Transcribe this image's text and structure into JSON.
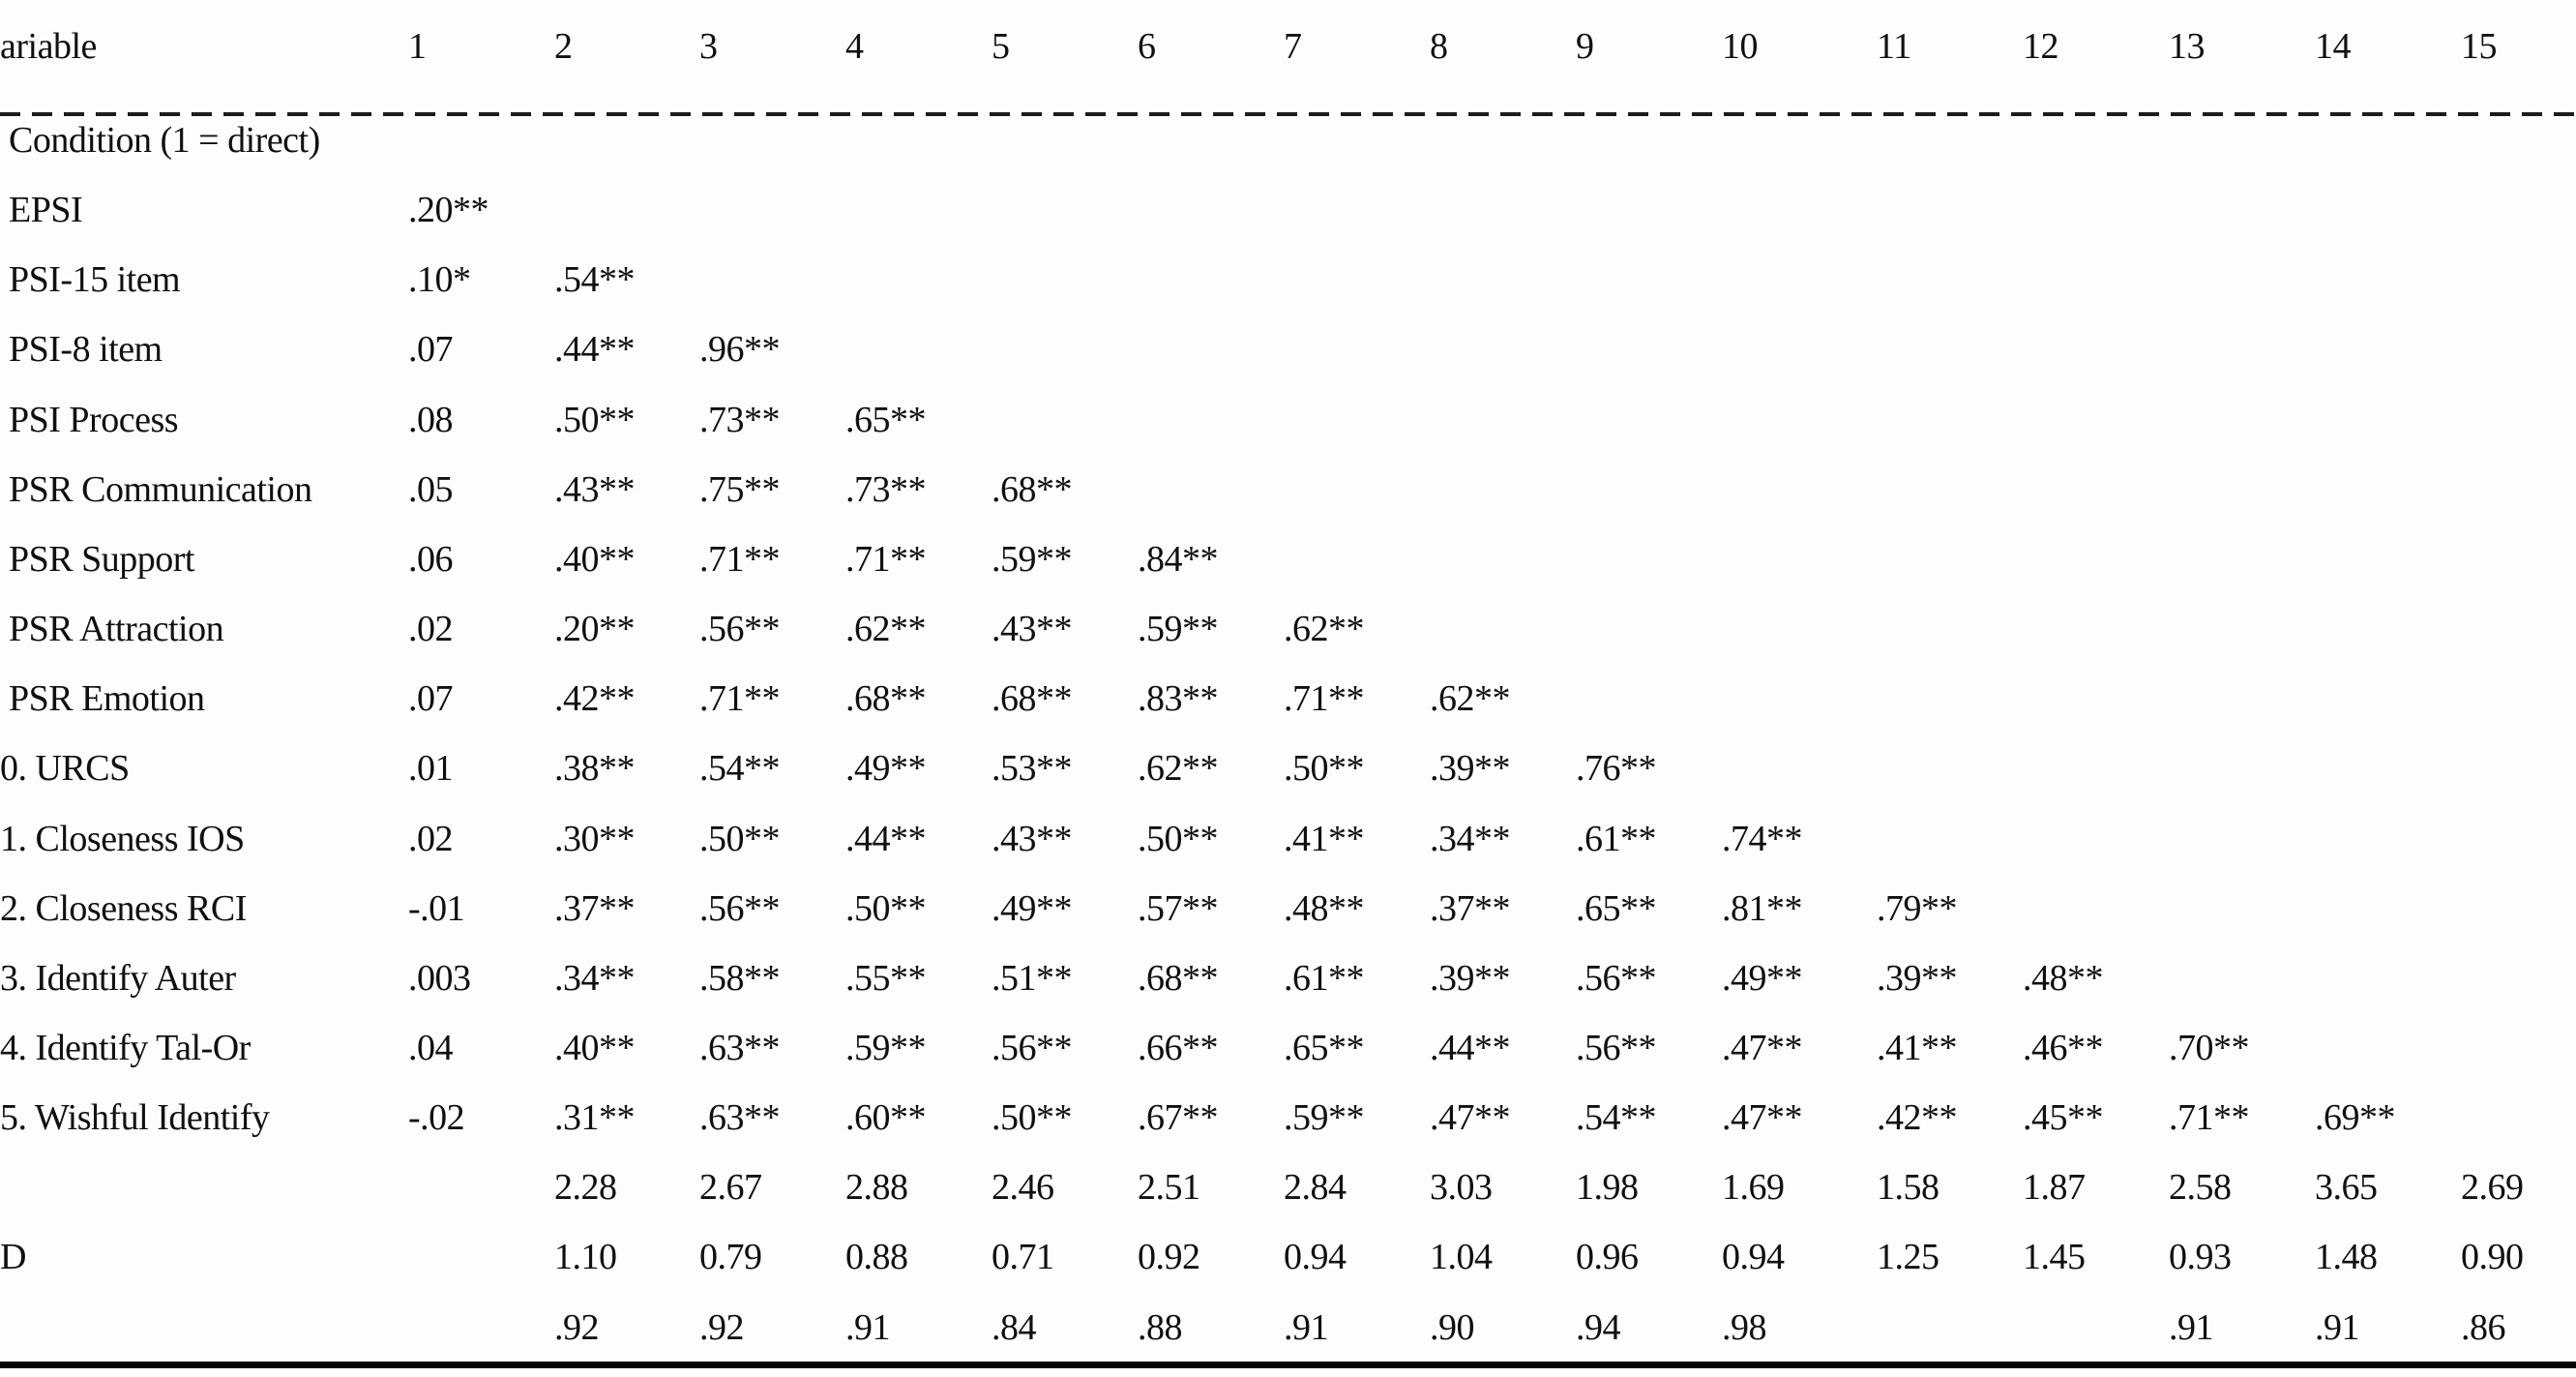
{
  "table": {
    "header": {
      "variable_label": "ariable",
      "columns": [
        "1",
        "2",
        "3",
        "4",
        "5",
        "6",
        "7",
        "8",
        "9",
        "10",
        "11",
        "12",
        "13",
        "14",
        "15"
      ]
    },
    "rows": [
      {
        "label": "Condition (1 = direct)",
        "values": [
          "",
          "",
          "",
          "",
          "",
          "",
          "",
          "",
          "",
          "",
          "",
          "",
          "",
          "",
          ""
        ]
      },
      {
        "label": "EPSI",
        "values": [
          ".20**",
          "",
          "",
          "",
          "",
          "",
          "",
          "",
          "",
          "",
          "",
          "",
          "",
          "",
          ""
        ]
      },
      {
        "label": "PSI-15 item",
        "values": [
          ".10*",
          ".54**",
          "",
          "",
          "",
          "",
          "",
          "",
          "",
          "",
          "",
          "",
          "",
          "",
          ""
        ]
      },
      {
        "label": "PSI-8 item",
        "values": [
          ".07",
          ".44**",
          ".96**",
          "",
          "",
          "",
          "",
          "",
          "",
          "",
          "",
          "",
          "",
          "",
          ""
        ]
      },
      {
        "label": "PSI Process",
        "values": [
          ".08",
          ".50**",
          ".73**",
          ".65**",
          "",
          "",
          "",
          "",
          "",
          "",
          "",
          "",
          "",
          "",
          ""
        ]
      },
      {
        "label": "PSR Communication",
        "values": [
          ".05",
          ".43**",
          ".75**",
          ".73**",
          ".68**",
          "",
          "",
          "",
          "",
          "",
          "",
          "",
          "",
          "",
          ""
        ]
      },
      {
        "label": "PSR Support",
        "values": [
          ".06",
          ".40**",
          ".71**",
          ".71**",
          ".59**",
          ".84**",
          "",
          "",
          "",
          "",
          "",
          "",
          "",
          "",
          ""
        ]
      },
      {
        "label": "PSR Attraction",
        "values": [
          ".02",
          ".20**",
          ".56**",
          ".62**",
          ".43**",
          ".59**",
          ".62**",
          "",
          "",
          "",
          "",
          "",
          "",
          "",
          ""
        ]
      },
      {
        "label": "PSR Emotion",
        "values": [
          ".07",
          ".42**",
          ".71**",
          ".68**",
          ".68**",
          ".83**",
          ".71**",
          ".62**",
          "",
          "",
          "",
          "",
          "",
          "",
          ""
        ]
      },
      {
        "label": "0. URCS",
        "values": [
          ".01",
          ".38**",
          ".54**",
          ".49**",
          ".53**",
          ".62**",
          ".50**",
          ".39**",
          ".76**",
          "",
          "",
          "",
          "",
          "",
          ""
        ]
      },
      {
        "label": "1. Closeness IOS",
        "values": [
          ".02",
          ".30**",
          ".50**",
          ".44**",
          ".43**",
          ".50**",
          ".41**",
          ".34**",
          ".61**",
          ".74**",
          "",
          "",
          "",
          "",
          ""
        ]
      },
      {
        "label": "2. Closeness RCI",
        "values": [
          "-.01",
          ".37**",
          ".56**",
          ".50**",
          ".49**",
          ".57**",
          ".48**",
          ".37**",
          ".65**",
          ".81**",
          ".79**",
          "",
          "",
          "",
          ""
        ]
      },
      {
        "label": "3. Identify Auter",
        "values": [
          ".003",
          ".34**",
          ".58**",
          ".55**",
          ".51**",
          ".68**",
          ".61**",
          ".39**",
          ".56**",
          ".49**",
          ".39**",
          ".48**",
          "",
          "",
          ""
        ]
      },
      {
        "label": "4. Identify Tal-Or",
        "values": [
          ".04",
          ".40**",
          ".63**",
          ".59**",
          ".56**",
          ".66**",
          ".65**",
          ".44**",
          ".56**",
          ".47**",
          ".41**",
          ".46**",
          ".70**",
          "",
          ""
        ]
      },
      {
        "label": "5. Wishful Identify",
        "values": [
          "-.02",
          ".31**",
          ".63**",
          ".60**",
          ".50**",
          ".67**",
          ".59**",
          ".47**",
          ".54**",
          ".47**",
          ".42**",
          ".45**",
          ".71**",
          ".69**",
          ""
        ]
      }
    ],
    "summary_rows": [
      {
        "label": "",
        "values": [
          "",
          "2.28",
          "2.67",
          "2.88",
          "2.46",
          "2.51",
          "2.84",
          "3.03",
          "1.98",
          "1.69",
          "1.58",
          "1.87",
          "2.58",
          "3.65",
          "2.69"
        ]
      },
      {
        "label": "D",
        "values": [
          "",
          "1.10",
          "0.79",
          "0.88",
          "0.71",
          "0.92",
          "0.94",
          "1.04",
          "0.96",
          "0.94",
          "1.25",
          "1.45",
          "0.93",
          "1.48",
          "0.90"
        ]
      },
      {
        "label": "",
        "values": [
          "",
          ".92",
          ".92",
          ".91",
          ".84",
          ".88",
          ".91",
          ".90",
          ".94",
          ".98",
          "",
          "",
          ".91",
          ".91",
          ".86"
        ]
      }
    ]
  },
  "colors": {
    "text": "#101010",
    "background": "#fdfdfd",
    "rule": "#000000"
  }
}
